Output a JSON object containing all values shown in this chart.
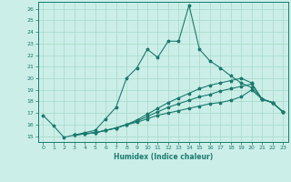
{
  "xlabel": "Humidex (Indice chaleur)",
  "bg_color": "#cceee8",
  "grid_color": "#aaddcc",
  "line_color": "#1a7a6e",
  "xlim": [
    -0.5,
    23.5
  ],
  "ylim": [
    14.5,
    26.6
  ],
  "yticks": [
    15,
    16,
    17,
    18,
    19,
    20,
    21,
    22,
    23,
    24,
    25,
    26
  ],
  "xticks": [
    0,
    1,
    2,
    3,
    4,
    5,
    6,
    7,
    8,
    9,
    10,
    11,
    12,
    13,
    14,
    15,
    16,
    17,
    18,
    19,
    20,
    21,
    22,
    23
  ],
  "line1_x": [
    0,
    1,
    2,
    3,
    4,
    5,
    6,
    7,
    8,
    9,
    10,
    11,
    12,
    13,
    14,
    15,
    16,
    17,
    18,
    19,
    20,
    21,
    22,
    23
  ],
  "line1_y": [
    16.8,
    15.9,
    14.9,
    15.1,
    15.3,
    15.5,
    16.5,
    17.5,
    20.0,
    20.9,
    22.5,
    21.8,
    23.2,
    23.2,
    26.3,
    22.5,
    21.5,
    20.9,
    20.2,
    19.6,
    19.2,
    18.2,
    17.9,
    17.1
  ],
  "line2_x": [
    3,
    4,
    5,
    6,
    7,
    8,
    9,
    10,
    11,
    12,
    13,
    14,
    15,
    16,
    17,
    18,
    19,
    20,
    21,
    22,
    23
  ],
  "line2_y": [
    15.1,
    15.2,
    15.3,
    15.5,
    15.7,
    16.0,
    16.2,
    16.5,
    16.8,
    17.0,
    17.2,
    17.4,
    17.6,
    17.8,
    17.9,
    18.1,
    18.4,
    19.0,
    18.2,
    17.9,
    17.1
  ],
  "line3_x": [
    3,
    4,
    5,
    6,
    7,
    8,
    9,
    10,
    11,
    12,
    13,
    14,
    15,
    16,
    17,
    18,
    19,
    20,
    21,
    22,
    23
  ],
  "line3_y": [
    15.1,
    15.2,
    15.3,
    15.5,
    15.7,
    16.0,
    16.3,
    16.7,
    17.1,
    17.5,
    17.8,
    18.1,
    18.4,
    18.6,
    18.9,
    19.1,
    19.3,
    19.5,
    18.2,
    17.9,
    17.1
  ],
  "line4_x": [
    3,
    4,
    5,
    6,
    7,
    8,
    9,
    10,
    11,
    12,
    13,
    14,
    15,
    16,
    17,
    18,
    19,
    20,
    21,
    22,
    23
  ],
  "line4_y": [
    15.1,
    15.2,
    15.3,
    15.5,
    15.7,
    16.0,
    16.4,
    16.9,
    17.4,
    17.9,
    18.3,
    18.7,
    19.1,
    19.4,
    19.6,
    19.8,
    20.0,
    19.6,
    18.2,
    17.9,
    17.1
  ]
}
